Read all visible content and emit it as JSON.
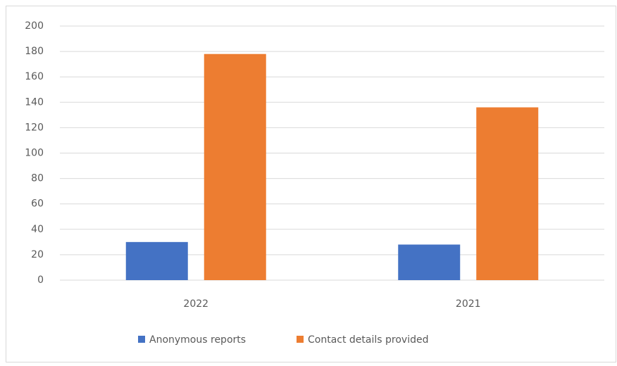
{
  "chart_data": {
    "type": "bar",
    "categories": [
      "2022",
      "2021"
    ],
    "series": [
      {
        "name": "Anonymous reports",
        "color": "#4472c4",
        "values": [
          30,
          28
        ]
      },
      {
        "name": "Contact details provided",
        "color": "#ed7d31",
        "values": [
          178,
          136
        ]
      }
    ],
    "ylim": [
      0,
      200
    ],
    "yticks": [
      0,
      20,
      40,
      60,
      80,
      100,
      120,
      140,
      160,
      180,
      200
    ],
    "grid": true,
    "legend": "bottom"
  }
}
